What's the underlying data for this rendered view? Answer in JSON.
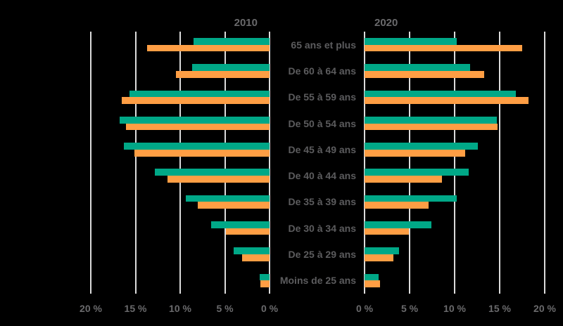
{
  "chart_data": {
    "type": "bar",
    "orientation": "horizontal",
    "layout": "back-to-back population pyramid, two panels with shared central category labels",
    "grid": true,
    "legend_position": "none (panel titles only)",
    "unit": "%",
    "categories": [
      "65 ans et plus",
      "De 60 à 64 ans",
      "De 55 à 59 ans",
      "De 50 à 54 ans",
      "De 45 à 49 ans",
      "De 40 à 44 ans",
      "De 35 à 39 ans",
      "De 30 à 34 ans",
      "De 25 à 29 ans",
      "Moins de 25 ans"
    ],
    "panels": [
      {
        "title": "2010",
        "direction": "right-to-left",
        "axis_min": 0,
        "axis_max": 20,
        "tick_step": 5,
        "tick_labels_left_to_right": [
          "20 %",
          "15 %",
          "10 %",
          "5 %",
          "0 %"
        ],
        "series": [
          {
            "name": "teal-series",
            "color": "#00A887",
            "values": [
              8.5,
              8.7,
              15.7,
              16.8,
              16.3,
              12.8,
              9.4,
              6.5,
              4.0,
              1.1
            ]
          },
          {
            "name": "orange-series",
            "color": "#FF9E44",
            "values": [
              13.7,
              10.5,
              16.5,
              16.1,
              15.1,
              11.4,
              8.0,
              4.9,
              3.1,
              1.0
            ]
          }
        ]
      },
      {
        "title": "2020",
        "direction": "left-to-right",
        "axis_min": 0,
        "axis_max": 20,
        "tick_step": 5,
        "tick_labels_left_to_right": [
          "0 %",
          "5 %",
          "10 %",
          "15 %",
          "20 %"
        ],
        "series": [
          {
            "name": "teal-series",
            "color": "#00A887",
            "values": [
              10.2,
              11.7,
              16.8,
              14.7,
              12.6,
              11.6,
              10.2,
              7.4,
              3.8,
              1.6
            ]
          },
          {
            "name": "orange-series",
            "color": "#FF9E44",
            "values": [
              17.5,
              13.3,
              18.2,
              14.8,
              11.2,
              8.6,
              7.1,
              4.9,
              3.2,
              1.7
            ]
          }
        ]
      }
    ],
    "colors": {
      "teal": "#00A887",
      "orange": "#FF9E44",
      "gridline": "#DBDBDB",
      "category_text": "#5C5C5E",
      "tick_text": "#6A6A6C",
      "title_text": "#69696B",
      "background": "#000000"
    }
  }
}
